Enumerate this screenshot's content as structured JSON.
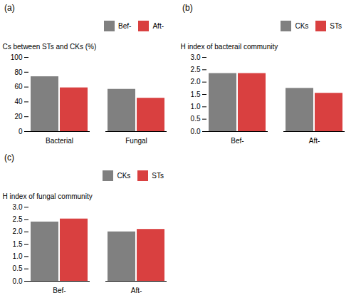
{
  "chart_data": [
    {
      "type": "bar",
      "title": "(a)",
      "categories": [
        "Bacterial",
        "Fungal"
      ],
      "series": [
        {
          "name": "Bef-",
          "color": "#808080",
          "values": [
            74,
            57
          ]
        },
        {
          "name": "Aft-",
          "color": "#d94040",
          "values": [
            59,
            45
          ]
        }
      ],
      "ylabel": "Cs between STs and CKs (%)",
      "ylim": [
        0,
        100
      ],
      "yticks": [
        0,
        20,
        40,
        60,
        80,
        100
      ],
      "legend": "upper right",
      "grid": false
    },
    {
      "type": "bar",
      "title": "(b)",
      "categories": [
        "Bef-",
        "Aft-"
      ],
      "series": [
        {
          "name": "CKs",
          "color": "#808080",
          "values": [
            2.35,
            1.75
          ]
        },
        {
          "name": "STs",
          "color": "#d94040",
          "values": [
            2.35,
            1.55
          ]
        }
      ],
      "ylabel": "H index of bacterail community",
      "ylim": [
        0,
        3.0
      ],
      "yticks": [
        {
          "value": 0,
          "label": "0.0"
        },
        0.5,
        {
          "value": 1,
          "label": "1.0"
        },
        1.5,
        {
          "value": 2,
          "label": "2.0"
        },
        2.5,
        {
          "value": 3,
          "label": "3.0"
        }
      ],
      "legend": "upper right",
      "grid": false
    },
    {
      "type": "bar",
      "title": "(c)",
      "categories": [
        "Bef-",
        "Aft-"
      ],
      "series": [
        {
          "name": "CKs",
          "color": "#808080",
          "values": [
            2.4,
            2.0
          ]
        },
        {
          "name": "STs",
          "color": "#d94040",
          "values": [
            2.52,
            2.1
          ]
        }
      ],
      "ylabel": "H index of fungal community",
      "ylim": [
        0,
        3.0
      ],
      "yticks": [
        {
          "value": 0,
          "label": "0.0"
        },
        0.5,
        {
          "value": 1,
          "label": "1.0"
        },
        1.5,
        {
          "value": 2,
          "label": "2.0"
        },
        2.5,
        {
          "value": 3,
          "label": "3.0"
        }
      ],
      "legend": "upper right",
      "grid": false
    }
  ]
}
